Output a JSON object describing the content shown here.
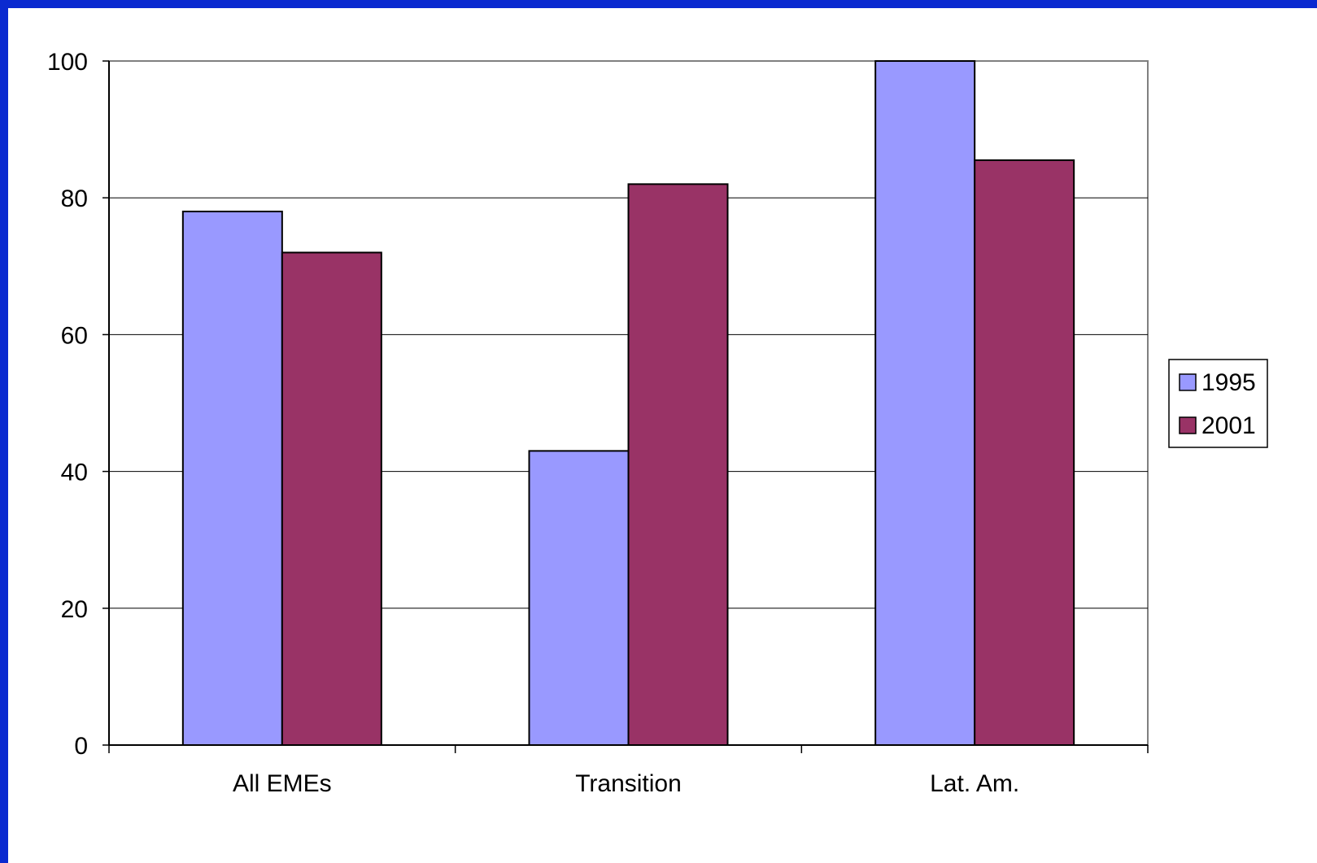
{
  "chart_data": {
    "type": "bar",
    "title": "",
    "xlabel": "",
    "ylabel": "",
    "categories": [
      "All EMEs",
      "Transition",
      "Lat. Am."
    ],
    "series": [
      {
        "name": "1995",
        "values": [
          78,
          43,
          100
        ],
        "color": "#9999ff"
      },
      {
        "name": "2001",
        "values": [
          72,
          82,
          85.5
        ],
        "color": "#993366"
      }
    ],
    "ylim": [
      0,
      100
    ],
    "yticks": [
      "0",
      "20",
      "40",
      "60",
      "80",
      "100"
    ],
    "grid": true,
    "legend_position": "right"
  },
  "colors": {
    "frame": "#0a2ad0",
    "background": "#ffffff",
    "plot_border": "#808080",
    "gridline": "#000000"
  }
}
